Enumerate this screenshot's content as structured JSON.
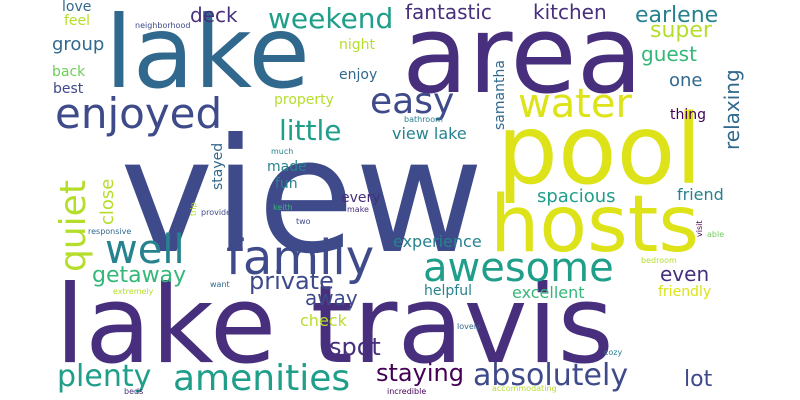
{
  "cloud": {
    "background": "#ffffff",
    "palette": {
      "dark_purple": "#440154",
      "indigo": "#472f7d",
      "blue_violet": "#3e4a89",
      "steel_blue": "#31688e",
      "teal": "#26828e",
      "sea_green": "#1f9e89",
      "green": "#35b779",
      "light_green": "#6ece58",
      "lime": "#b5de2b",
      "yellow": "#dde318"
    },
    "words": [
      {
        "text": "view",
        "size_rank": 1,
        "color": "#3e4a89"
      },
      {
        "text": "lake travis",
        "size_rank": 2,
        "color": "#472f7d"
      },
      {
        "text": "area",
        "size_rank": 3,
        "color": "#472f7d"
      },
      {
        "text": "lake",
        "size_rank": 4,
        "color": "#31688e"
      },
      {
        "text": "pool",
        "size_rank": 5,
        "color": "#dde318"
      },
      {
        "text": "hosts",
        "size_rank": 6,
        "color": "#dde318"
      },
      {
        "text": "awesome",
        "size_rank": 7,
        "color": "#1f9e89"
      },
      {
        "text": "family",
        "size_rank": 8,
        "color": "#3e4a89"
      },
      {
        "text": "amenities",
        "size_rank": 9,
        "color": "#1f9e89"
      },
      {
        "text": "enjoyed",
        "size_rank": 10,
        "color": "#3e4a89"
      },
      {
        "text": "well",
        "size_rank": 11,
        "color": "#26828e"
      },
      {
        "text": "water",
        "size_rank": 12,
        "color": "#dde318"
      },
      {
        "text": "easy",
        "size_rank": 13,
        "color": "#3e4a89"
      },
      {
        "text": "quiet",
        "size_rank": 14,
        "color": "#b5de2b"
      },
      {
        "text": "plenty",
        "size_rank": 15,
        "color": "#1f9e89"
      },
      {
        "text": "absolutely",
        "size_rank": 16,
        "color": "#3e4a89"
      },
      {
        "text": "little",
        "size_rank": 17,
        "color": "#1f9e89"
      },
      {
        "text": "weekend",
        "size_rank": 18,
        "color": "#1f9e89"
      },
      {
        "text": "private",
        "size_rank": 19,
        "color": "#3e4a89"
      },
      {
        "text": "staying",
        "size_rank": 20,
        "color": "#440154"
      },
      {
        "text": "spot",
        "size_rank": 21,
        "color": "#472f7d"
      },
      {
        "text": "lot",
        "size_rank": 22,
        "color": "#3e4a89"
      },
      {
        "text": "getaway",
        "size_rank": 23,
        "color": "#35b779"
      },
      {
        "text": "fantastic",
        "size_rank": 24,
        "color": "#472f7d"
      },
      {
        "text": "kitchen",
        "size_rank": 25,
        "color": "#472f7d"
      },
      {
        "text": "earlene",
        "size_rank": 26,
        "color": "#26828e"
      },
      {
        "text": "super",
        "size_rank": 27,
        "color": "#b5de2b"
      },
      {
        "text": "deck",
        "size_rank": 28,
        "color": "#472f7d"
      },
      {
        "text": "away",
        "size_rank": 29,
        "color": "#3e4a89"
      },
      {
        "text": "relaxing",
        "size_rank": 30,
        "color": "#31688e"
      },
      {
        "text": "guest",
        "size_rank": 31,
        "color": "#35b779"
      },
      {
        "text": "even",
        "size_rank": 32,
        "color": "#472f7d"
      },
      {
        "text": "spacious",
        "size_rank": 33,
        "color": "#1f9e89"
      },
      {
        "text": "group",
        "size_rank": 34,
        "color": "#31688e"
      },
      {
        "text": "one",
        "size_rank": 35,
        "color": "#31688e"
      },
      {
        "text": "close",
        "size_rank": 36,
        "color": "#b5de2b"
      },
      {
        "text": "view lake",
        "size_rank": 37,
        "color": "#26828e"
      },
      {
        "text": "experience",
        "size_rank": 38,
        "color": "#26828e"
      },
      {
        "text": "friend",
        "size_rank": 39,
        "color": "#26828e"
      },
      {
        "text": "check",
        "size_rank": 40,
        "color": "#b5de2b"
      },
      {
        "text": "excellent",
        "size_rank": 41,
        "color": "#35b779"
      },
      {
        "text": "helpful",
        "size_rank": 42,
        "color": "#26828e"
      },
      {
        "text": "property",
        "size_rank": 43,
        "color": "#b5de2b"
      },
      {
        "text": "made",
        "size_rank": 44,
        "color": "#26828e"
      },
      {
        "text": "fun",
        "size_rank": 45,
        "color": "#26828e"
      },
      {
        "text": "stayed",
        "size_rank": 46,
        "color": "#31688e"
      },
      {
        "text": "samantha",
        "size_rank": 47,
        "color": "#31688e"
      },
      {
        "text": "thing",
        "size_rank": 48,
        "color": "#440154"
      },
      {
        "text": "friendly",
        "size_rank": 49,
        "color": "#dde318"
      },
      {
        "text": "night",
        "size_rank": 50,
        "color": "#b5de2b"
      },
      {
        "text": "enjoy",
        "size_rank": 51,
        "color": "#31688e"
      },
      {
        "text": "love",
        "size_rank": 52,
        "color": "#31688e"
      },
      {
        "text": "feel",
        "size_rank": 53,
        "color": "#b5de2b"
      },
      {
        "text": "back",
        "size_rank": 54,
        "color": "#6ece58"
      },
      {
        "text": "best",
        "size_rank": 55,
        "color": "#3e4a89"
      },
      {
        "text": "every",
        "size_rank": 56,
        "color": "#472f7d"
      },
      {
        "text": "neighborhood",
        "size_rank": 57,
        "color": "#3e4a89"
      },
      {
        "text": "bathroom",
        "size_rank": 58,
        "color": "#26828e"
      },
      {
        "text": "much",
        "size_rank": 59,
        "color": "#26828e"
      },
      {
        "text": "provided",
        "size_rank": 60,
        "color": "#3e4a89"
      },
      {
        "text": "keith",
        "size_rank": 61,
        "color": "#35b779"
      },
      {
        "text": "make",
        "size_rank": 62,
        "color": "#472f7d"
      },
      {
        "text": "two",
        "size_rank": 63,
        "color": "#3e4a89"
      },
      {
        "text": "trip",
        "size_rank": 64,
        "color": "#b5de2b"
      },
      {
        "text": "responsive",
        "size_rank": 65,
        "color": "#31688e"
      },
      {
        "text": "visit",
        "size_rank": 66,
        "color": "#440154"
      },
      {
        "text": "able",
        "size_rank": 67,
        "color": "#6ece58"
      },
      {
        "text": "bedroom",
        "size_rank": 68,
        "color": "#b5de2b"
      },
      {
        "text": "extremely",
        "size_rank": 69,
        "color": "#b5de2b"
      },
      {
        "text": "want",
        "size_rank": 70,
        "color": "#31688e"
      },
      {
        "text": "lovely",
        "size_rank": 71,
        "color": "#31688e"
      },
      {
        "text": "cozy",
        "size_rank": 72,
        "color": "#26828e"
      },
      {
        "text": "beds",
        "size_rank": 73,
        "color": "#472f7d"
      },
      {
        "text": "incredible",
        "size_rank": 74,
        "color": "#440154"
      },
      {
        "text": "accommodating",
        "size_rank": 75,
        "color": "#b5de2b"
      }
    ]
  }
}
